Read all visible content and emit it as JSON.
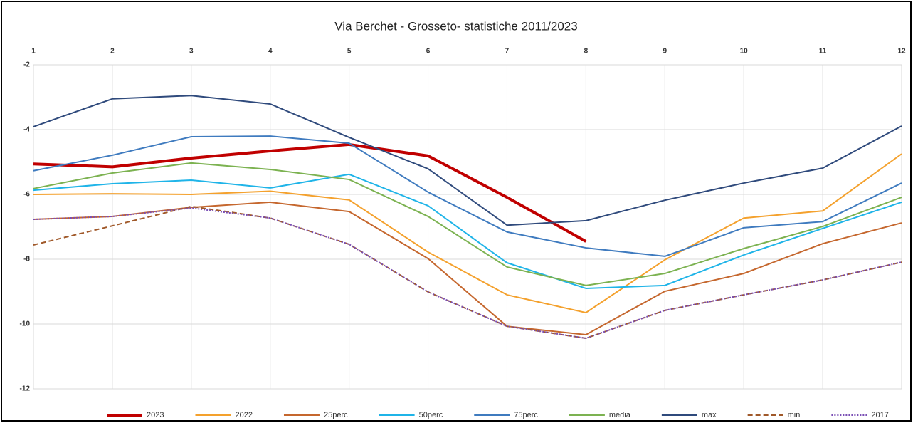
{
  "chart_data": {
    "type": "line",
    "title": "Via Berchet - Grosseto- statistiche 2011/2023",
    "x": [
      1,
      2,
      3,
      4,
      5,
      6,
      7,
      8,
      9,
      10,
      11,
      12
    ],
    "xlim": [
      1,
      12
    ],
    "xticks": [
      1,
      2,
      3,
      4,
      5,
      6,
      7,
      8,
      9,
      10,
      11,
      12
    ],
    "ylim": [
      -12,
      -2
    ],
    "yticks": [
      -2,
      -4,
      -6,
      -8,
      -10,
      -12
    ],
    "grid": true,
    "legend": "bottom",
    "series": [
      {
        "name": "2023",
        "color": "#c00000",
        "width": 4,
        "dash": "solid",
        "values": [
          -5.06,
          -5.15,
          -4.88,
          -4.66,
          -4.46,
          -4.81,
          -6.09,
          -7.45,
          null,
          null,
          null,
          null
        ]
      },
      {
        "name": "2022",
        "color": "#f4a12d",
        "width": 2,
        "dash": "solid",
        "values": [
          -6.0,
          -5.98,
          -6.0,
          -5.9,
          -6.17,
          -7.78,
          -9.1,
          -9.65,
          -8.02,
          -6.73,
          -6.51,
          -4.75
        ]
      },
      {
        "name": "25perc",
        "color": "#c5672e",
        "width": 2,
        "dash": "solid",
        "values": [
          -6.77,
          -6.68,
          -6.4,
          -6.24,
          -6.53,
          -7.98,
          -10.07,
          -10.33,
          -8.99,
          -8.44,
          -7.52,
          -6.88
        ]
      },
      {
        "name": "50perc",
        "color": "#1fb4e8",
        "width": 2,
        "dash": "solid",
        "values": [
          -5.87,
          -5.67,
          -5.56,
          -5.8,
          -5.38,
          -6.35,
          -8.11,
          -8.9,
          -8.81,
          -7.87,
          -7.05,
          -6.24
        ]
      },
      {
        "name": "75perc",
        "color": "#3f7bbf",
        "width": 2,
        "dash": "solid",
        "values": [
          -5.27,
          -4.79,
          -4.22,
          -4.2,
          -4.42,
          -5.93,
          -7.16,
          -7.65,
          -7.91,
          -7.03,
          -6.84,
          -5.65
        ]
      },
      {
        "name": "media",
        "color": "#7cb251",
        "width": 2,
        "dash": "solid",
        "values": [
          -5.82,
          -5.34,
          -5.03,
          -5.23,
          -5.54,
          -6.68,
          -8.24,
          -8.81,
          -8.44,
          -7.67,
          -6.99,
          -6.09
        ]
      },
      {
        "name": "max",
        "color": "#2f4a7c",
        "width": 2,
        "dash": "solid",
        "values": [
          -3.91,
          -3.05,
          -2.95,
          -3.21,
          -4.24,
          -5.21,
          -6.95,
          -6.81,
          -6.18,
          -5.65,
          -5.19,
          -3.89
        ]
      },
      {
        "name": "min",
        "color": "#a0592a",
        "width": 2,
        "dash": "dashed",
        "values": [
          -7.56,
          -6.97,
          -6.37,
          -6.73,
          -7.54,
          -9.01,
          -10.07,
          -10.44,
          -9.58,
          -9.1,
          -8.64,
          -8.09
        ]
      },
      {
        "name": "2017",
        "color": "#7a4fb5",
        "width": 2,
        "dash": "dotted",
        "values": [
          -6.77,
          -6.68,
          -6.42,
          -6.73,
          -7.54,
          -9.01,
          -10.07,
          -10.44,
          -9.58,
          -9.1,
          -8.64,
          -8.09
        ]
      }
    ]
  }
}
